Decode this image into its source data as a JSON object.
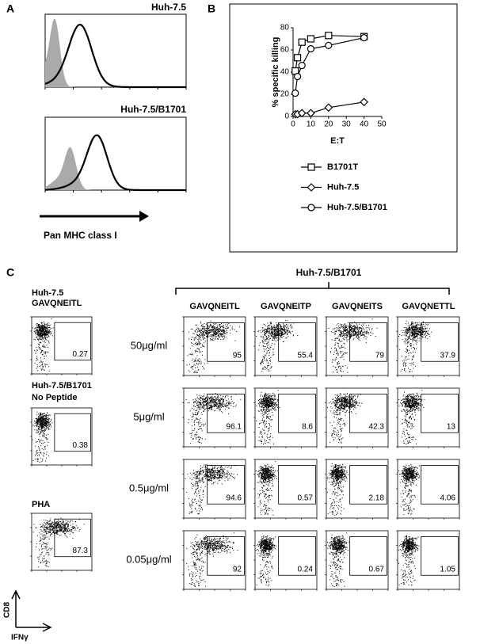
{
  "panel_labels": [
    "A",
    "B",
    "C"
  ],
  "panel_a": {
    "histograms": [
      {
        "title": "Huh-7.5"
      },
      {
        "title": "Huh-7.5/B1701"
      }
    ],
    "axis_label": "Pan MHC class I"
  },
  "chart_data": {
    "type": "line",
    "xlabel": "E:T",
    "ylabel": "% specific killing",
    "x": [
      1.25,
      2.5,
      5,
      10,
      20,
      40
    ],
    "series": [
      {
        "name": "B1701T",
        "marker": "square",
        "values": [
          41,
          53,
          67,
          70,
          73,
          72
        ]
      },
      {
        "name": "Huh-7.5",
        "marker": "diamond",
        "values": [
          2,
          2,
          3,
          3,
          8,
          13
        ]
      },
      {
        "name": "Huh-7.5/B1701",
        "marker": "circle",
        "values": [
          21,
          36,
          46,
          61,
          64,
          71
        ]
      }
    ],
    "xlim": [
      0,
      50
    ],
    "ylim": [
      0,
      80
    ],
    "xticks": [
      0,
      10,
      20,
      30,
      40,
      50
    ],
    "yticks": [
      0,
      20,
      40,
      60,
      80
    ],
    "legend": "below"
  },
  "panel_c": {
    "header": "Huh-7.5/B1701",
    "columns": [
      "GAVQNEITL",
      "GAVQNEITP",
      "GAVQNEITS",
      "GAVQNETTL"
    ],
    "rows": [
      {
        "label": "50μg/ml",
        "values": [
          95,
          55.4,
          79,
          37.9
        ]
      },
      {
        "label": "5μg/ml",
        "values": [
          96.1,
          8.6,
          42.3,
          13
        ]
      },
      {
        "label": "0.5μg/ml",
        "values": [
          94.6,
          0.57,
          2.18,
          4.06
        ]
      },
      {
        "label": "0.05μg/ml",
        "values": [
          92,
          0.24,
          0.67,
          1.05
        ]
      }
    ],
    "controls": [
      {
        "label": [
          "Huh-7.5",
          "GAVQNEITL"
        ],
        "value": 0.27
      },
      {
        "label": [
          "Huh-7.5/B1701",
          "No Peptide"
        ],
        "value": 0.38
      },
      {
        "label": [
          "PHA"
        ],
        "value": 87.3
      }
    ],
    "y_axis": "CD8",
    "x_axis": "IFNγ"
  }
}
